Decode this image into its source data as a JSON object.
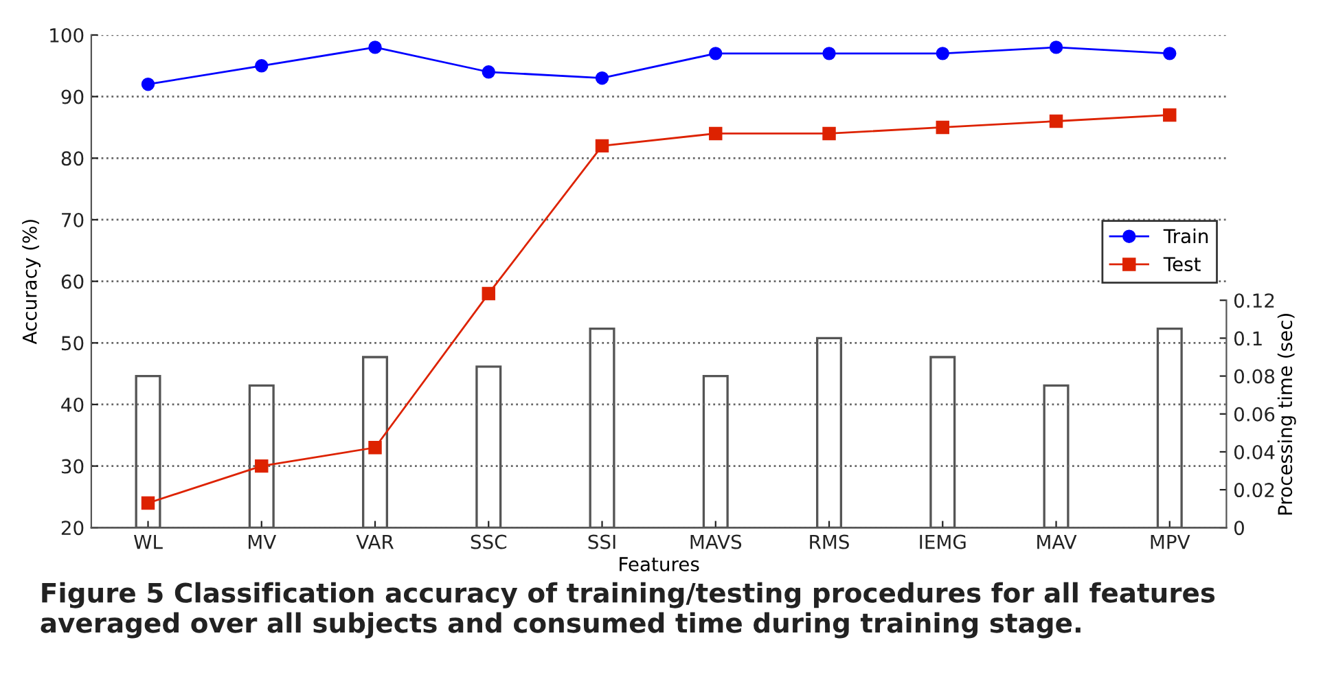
{
  "chart_data": {
    "type": "line",
    "xlabel": "Features",
    "ylabel": "Accuracy (%)",
    "y2label": "Processing time (sec)",
    "categories": [
      "WL",
      "MV",
      "VAR",
      "SSC",
      "SSI",
      "MAVS",
      "RMS",
      "IEMG",
      "MAV",
      "MPV"
    ],
    "series": [
      {
        "name": "Train",
        "color": "#0000ff",
        "marker": "circle",
        "values": [
          92,
          95,
          98,
          94,
          93,
          97,
          97,
          97,
          98,
          97
        ]
      },
      {
        "name": "Test",
        "color": "#dd2200",
        "marker": "square",
        "values": [
          24,
          30,
          33,
          58,
          82,
          84,
          84,
          85,
          86,
          87
        ]
      },
      {
        "type": "bar",
        "axis": "y2",
        "color": "#ffffff",
        "values": [
          0.08,
          0.075,
          0.09,
          0.085,
          0.105,
          0.08,
          0.1,
          0.09,
          0.075,
          0.105
        ]
      }
    ],
    "ylim": [
      20,
      100
    ],
    "yticks": [
      20,
      30,
      40,
      50,
      60,
      70,
      80,
      90,
      100
    ],
    "y2lim": [
      0,
      0.26
    ],
    "y2ticks": [
      0,
      0.02,
      0.04,
      0.06,
      0.08,
      0.1,
      0.12
    ],
    "grid": "y",
    "legend": "right",
    "line_style": "solid",
    "annotations": [
      "Figure 5 Classification accuracy of training/testing procedures for all features averaged over all subjects and consumed time during training stage."
    ]
  }
}
